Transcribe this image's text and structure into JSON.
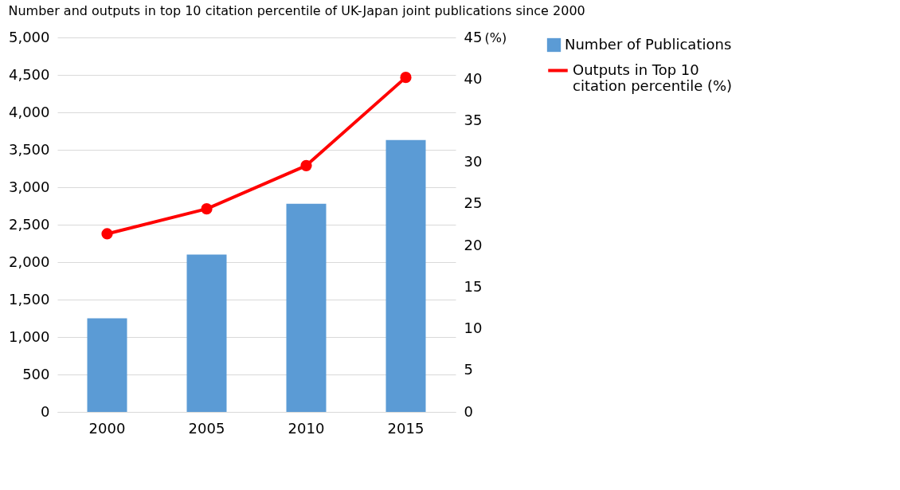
{
  "chart_data": {
    "type": "bar",
    "title": "Number and outputs in top 10 citation percentile of UK-Japan joint publications since 2000",
    "y2label": "(%)",
    "categories": [
      "2000",
      "2005",
      "2010",
      "2015"
    ],
    "series": [
      {
        "name": "Number of Publications",
        "color": "#5b9bd5",
        "values": [
          1250,
          2100,
          2780,
          3630
        ]
      },
      {
        "name": "Outputs in Top 10 citation percentile (%)",
        "type": "line",
        "axis": "y2",
        "color": "#ff0000",
        "values": [
          21.4,
          24.4,
          29.6,
          40.2
        ]
      }
    ],
    "ylim": [
      0,
      5000
    ],
    "yticks": [
      0,
      500,
      {
        "value": 1000,
        "label": "1,000"
      },
      {
        "value": 1500,
        "label": "1,500"
      },
      {
        "value": 2000,
        "label": "2,000"
      },
      {
        "value": 2500,
        "label": "2,500"
      },
      {
        "value": 3000,
        "label": "3,000"
      },
      {
        "value": 3500,
        "label": "3,500"
      },
      {
        "value": 4000,
        "label": "4,000"
      },
      {
        "value": 4500,
        "label": "4,500"
      },
      {
        "value": 5000,
        "label": "5,000"
      }
    ],
    "y2lim": [
      0,
      45
    ],
    "y2ticks": [
      0,
      5,
      10,
      15,
      20,
      25,
      30,
      35,
      40,
      45
    ],
    "grid": "y",
    "legend": "right",
    "marker": "circle",
    "line_style": "solid"
  }
}
